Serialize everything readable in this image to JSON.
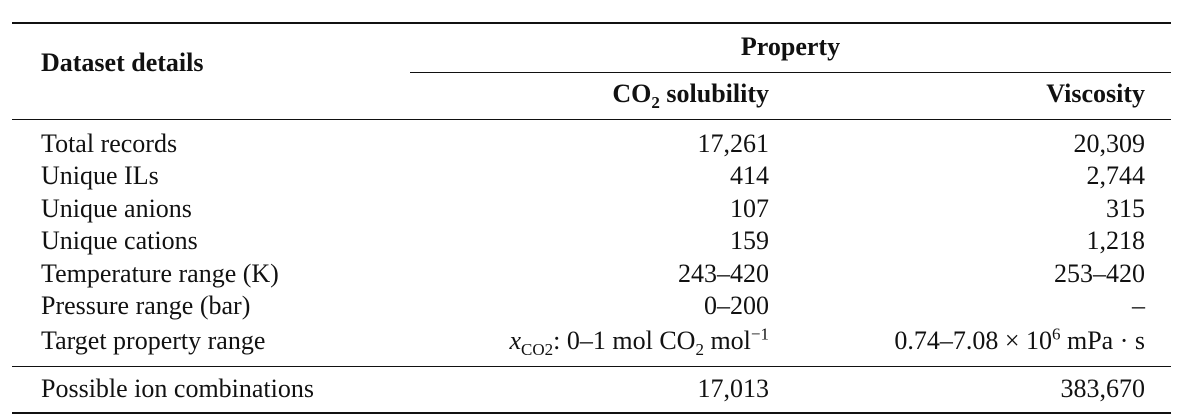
{
  "table": {
    "header": {
      "row_label": "Dataset details",
      "group_label": "Property",
      "col_co2_prefix": "CO",
      "col_co2_sub": "2",
      "col_co2_suffix": " solubility",
      "col_viscosity": "Viscosity"
    },
    "rows": [
      {
        "label": "Total records",
        "co2": "17,261",
        "visc": "20,309"
      },
      {
        "label": "Unique ILs",
        "co2": "414",
        "visc": "2,744"
      },
      {
        "label": "Unique anions",
        "co2": "107",
        "visc": "315"
      },
      {
        "label": "Unique cations",
        "co2": "159",
        "visc": "1,218"
      },
      {
        "label": "Temperature range (K)",
        "co2": "243–420",
        "visc": "253–420"
      },
      {
        "label": "Pressure range (bar)",
        "co2": "0–200",
        "visc": "–"
      }
    ],
    "target_row": {
      "label": "Target property range",
      "co2_var": "x",
      "co2_var_sub": "CO2",
      "co2_text": ": 0–1 mol CO",
      "co2_text_sub": "2",
      "co2_unit": " mol",
      "co2_exp": "−1",
      "visc_range": "0.74–7.08 × 10",
      "visc_exp": "6",
      "visc_unit": " mPa · s"
    },
    "footer_row": {
      "label": "Possible ion combinations",
      "co2": "17,013",
      "visc": "383,670"
    }
  }
}
